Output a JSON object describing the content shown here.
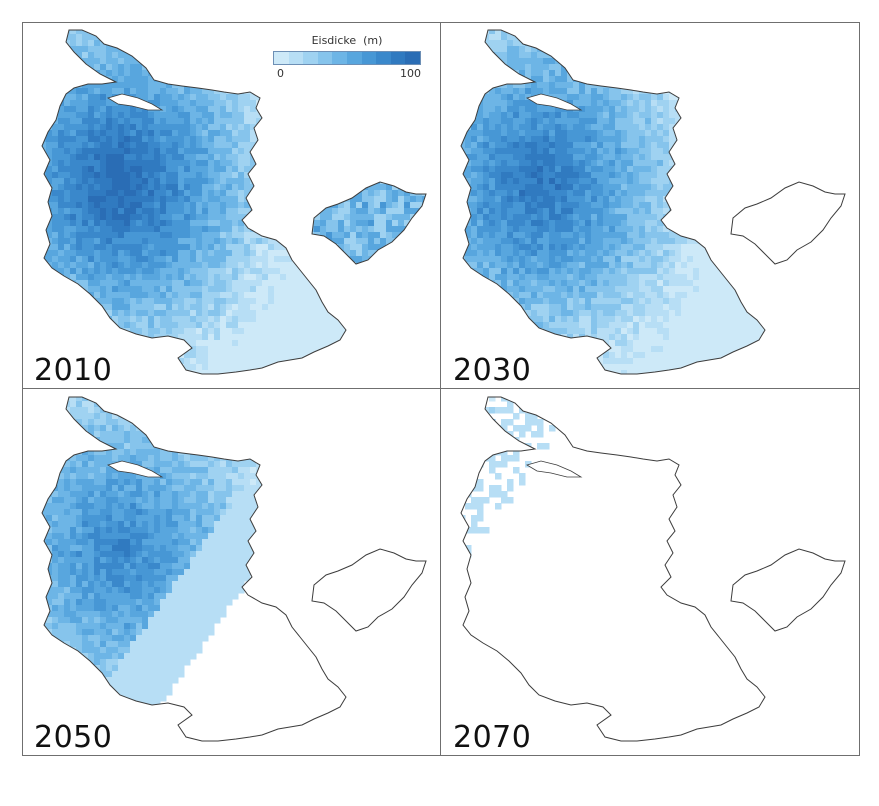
{
  "figure": {
    "panels": [
      {
        "year": "2010",
        "ice_level": 1.0
      },
      {
        "year": "2030",
        "ice_level": 0.78
      },
      {
        "year": "2050",
        "ice_level": 0.48
      },
      {
        "year": "2070",
        "ice_level": 0.14
      }
    ],
    "legend": {
      "title": "Eisdicke  (m)",
      "min_label": "0",
      "max_label": "100",
      "colors": [
        "#cde9f8",
        "#b7def5",
        "#9fd2f1",
        "#86c4ec",
        "#6db5e6",
        "#58a6de",
        "#4797d5",
        "#3a88cb",
        "#307ac0",
        "#2a6db5"
      ]
    },
    "colors": {
      "outline": "#3c3c3c",
      "frame": "#6f6f6f",
      "ice_light": "#cde9f8",
      "ice_mid": "#7ebfeb",
      "ice_dark": "#3d88cc"
    }
  }
}
